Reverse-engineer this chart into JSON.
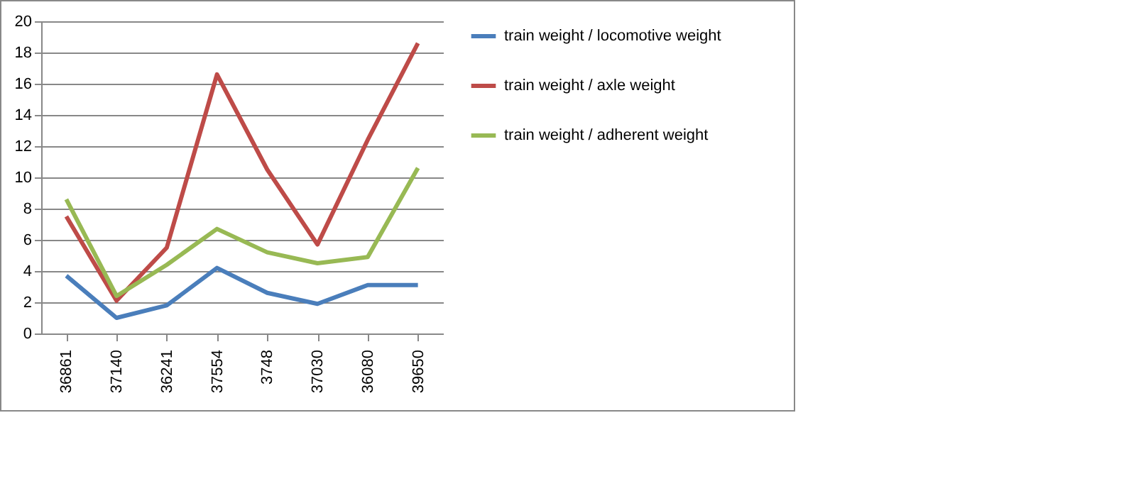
{
  "chart_data": {
    "type": "line",
    "categories": [
      "36861",
      "37140",
      "36241",
      "37554",
      "3748",
      "37030",
      "36080",
      "39650"
    ],
    "series": [
      {
        "name": "train weight / locomotive weight",
        "color": "#4a7ebb",
        "values": [
          3.7,
          1.0,
          1.8,
          4.2,
          2.6,
          1.9,
          3.1,
          3.1
        ]
      },
      {
        "name": "train weight / axle weight",
        "color": "#be4b48",
        "values": [
          7.5,
          2.1,
          5.5,
          16.6,
          10.5,
          5.7,
          12.4,
          18.6
        ]
      },
      {
        "name": "train weight / adherent weight",
        "color": "#98b954",
        "values": [
          8.6,
          2.4,
          4.4,
          6.7,
          5.2,
          4.5,
          4.9,
          10.6
        ]
      }
    ],
    "ylim": [
      0,
      20
    ],
    "yticks": [
      0,
      2,
      4,
      6,
      8,
      10,
      12,
      14,
      16,
      18,
      20
    ],
    "grid": "y",
    "legend": "right",
    "marker": "none",
    "line_style": "solid"
  }
}
